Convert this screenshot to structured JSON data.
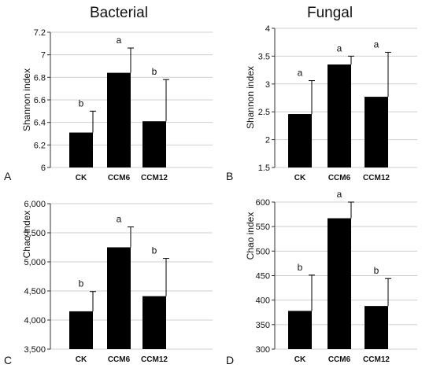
{
  "column_titles": [
    "Bacterial",
    "Fungal"
  ],
  "chart_data": [
    {
      "type": "bar",
      "panel": "A",
      "ylabel": "Shannon index",
      "categories": [
        "CK",
        "CCM6",
        "CCM12"
      ],
      "values": [
        6.31,
        6.84,
        6.41
      ],
      "errors": [
        0.19,
        0.22,
        0.37
      ],
      "letters": [
        "b",
        "a",
        "b"
      ],
      "ylim": [
        6,
        7.2
      ],
      "yticks": [
        6,
        6.2,
        6.4,
        6.6,
        6.8,
        7,
        7.2
      ],
      "ytick_labels": [
        "6",
        "6.2",
        "6.4",
        "6.6",
        "6.8",
        "7",
        "7.2"
      ]
    },
    {
      "type": "bar",
      "panel": "B",
      "ylabel": "Shannon index",
      "categories": [
        "CK",
        "CCM6",
        "CCM12"
      ],
      "values": [
        2.46,
        3.35,
        2.77
      ],
      "errors": [
        0.6,
        0.15,
        0.8
      ],
      "letters": [
        "a",
        "a",
        "a"
      ],
      "ylim": [
        1.5,
        4
      ],
      "yticks": [
        1.5,
        2,
        2.5,
        3,
        3.5,
        4
      ],
      "ytick_labels": [
        "1.5",
        "2",
        "2.5",
        "3",
        "3.5",
        "4"
      ]
    },
    {
      "type": "bar",
      "panel": "C",
      "ylabel": "Chao index",
      "categories": [
        "CK",
        "CCM6",
        "CCM12"
      ],
      "values": [
        4150,
        5250,
        4410
      ],
      "errors": [
        340,
        350,
        650
      ],
      "letters": [
        "b",
        "a",
        "b"
      ],
      "ylim": [
        3500,
        6000
      ],
      "yticks": [
        3500,
        4000,
        4500,
        5000,
        5500,
        6000
      ],
      "ytick_labels": [
        "3,500",
        "4,000",
        "4,500",
        "5,000",
        "5,500",
        "6,000"
      ]
    },
    {
      "type": "bar",
      "panel": "D",
      "ylabel": "Chao index",
      "categories": [
        "CK",
        "CCM6",
        "CCM12"
      ],
      "values": [
        378,
        567,
        388
      ],
      "errors": [
        73,
        33,
        56
      ],
      "letters": [
        "b",
        "a",
        "b"
      ],
      "ylim": [
        300,
        600
      ],
      "yticks": [
        300,
        350,
        400,
        450,
        500,
        550,
        600
      ],
      "ytick_labels": [
        "300",
        "350",
        "400",
        "450",
        "500",
        "550",
        "600"
      ]
    }
  ]
}
